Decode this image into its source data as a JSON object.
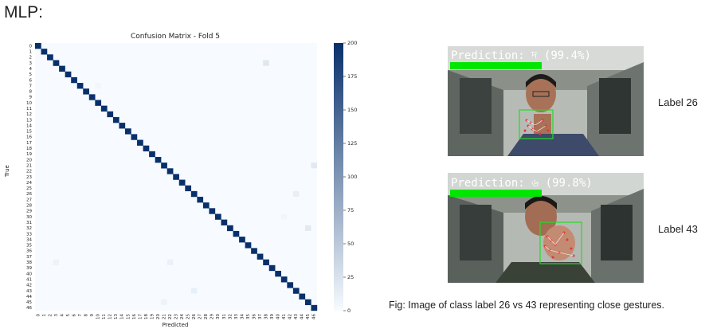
{
  "heading": "MLP:",
  "chart_data": {
    "type": "heatmap",
    "title": "Confusion Matrix - Fold 5",
    "xlabel": "Predicted",
    "ylabel": "True",
    "classes": [
      "0",
      "1",
      "2",
      "3",
      "4",
      "5",
      "6",
      "7",
      "8",
      "9",
      "10",
      "11",
      "12",
      "13",
      "14",
      "15",
      "16",
      "17",
      "18",
      "19",
      "20",
      "21",
      "22",
      "23",
      "24",
      "25",
      "26",
      "27",
      "28",
      "29",
      "30",
      "31",
      "32",
      "33",
      "34",
      "35",
      "36",
      "37",
      "38",
      "39",
      "40",
      "41",
      "42",
      "43",
      "44",
      "45",
      "46"
    ],
    "diagonal_value": 200,
    "off_diagonal": [
      {
        "true": 3,
        "pred": 38,
        "value": 20
      },
      {
        "true": 21,
        "pred": 46,
        "value": 18
      },
      {
        "true": 26,
        "pred": 43,
        "value": 12
      },
      {
        "true": 32,
        "pred": 45,
        "value": 18
      },
      {
        "true": 38,
        "pred": 3,
        "value": 8
      },
      {
        "true": 38,
        "pred": 22,
        "value": 10
      },
      {
        "true": 43,
        "pred": 26,
        "value": 12
      },
      {
        "true": 45,
        "pred": 21,
        "value": 8
      },
      {
        "true": 7,
        "pred": 10,
        "value": 4
      },
      {
        "true": 30,
        "pred": 41,
        "value": 5
      }
    ],
    "colorbar": {
      "min": 0,
      "max": 200,
      "ticks": [
        "0",
        "25",
        "50",
        "75",
        "100",
        "125",
        "150",
        "175",
        "200"
      ]
    },
    "colormap": {
      "low": "#f7fbff",
      "high": "#08306b"
    }
  },
  "panel1": {
    "prediction_text": "Prediction: দ (99.4%)",
    "side_label": "Label 26"
  },
  "panel2": {
    "prediction_text": "Prediction: ৬ (99.8%)",
    "side_label": "Label 43"
  },
  "caption": "Fig: Image of class label 26 vs 43 representing close gestures.",
  "colors": {
    "prediction_bar": "#00e600",
    "landmark": "#e8313a",
    "box": "#22dd22"
  }
}
